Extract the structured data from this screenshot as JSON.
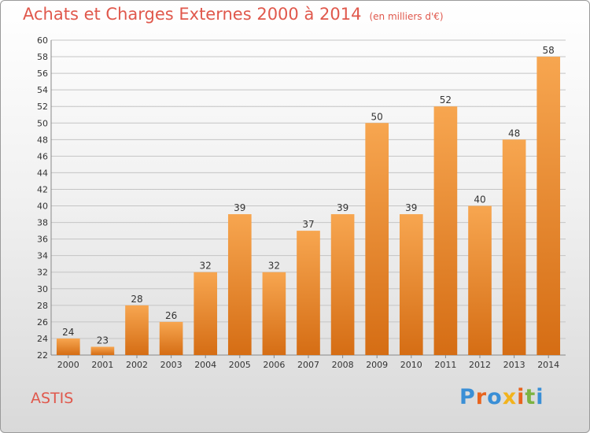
{
  "header": {
    "title": "Achats et Charges Externes 2000 à 2014",
    "unit_note": "(en milliers d'€)"
  },
  "footer": {
    "location": "ASTIS",
    "logo_text": "Proxiti"
  },
  "colors": {
    "title": "#e0584c",
    "bar_top": "#f7a650",
    "bar_bottom": "#d56d14",
    "logo": [
      "#3a8fd6",
      "#e8641e",
      "#3a8fd6",
      "#f2b31c",
      "#e8641e",
      "#7cb342",
      "#3a8fd6"
    ]
  },
  "chart_data": {
    "type": "bar",
    "title": "Achats et Charges Externes 2000 à 2014",
    "subtitle": "(en milliers d'€)",
    "categories": [
      "2000",
      "2001",
      "2002",
      "2003",
      "2004",
      "2005",
      "2006",
      "2007",
      "2008",
      "2009",
      "2010",
      "2011",
      "2012",
      "2013",
      "2014"
    ],
    "values": [
      24,
      23,
      28,
      26,
      32,
      39,
      32,
      37,
      39,
      50,
      39,
      52,
      40,
      48,
      58
    ],
    "ylim": [
      22,
      60
    ],
    "ytick_step": 2,
    "grid": true,
    "xlabel": "",
    "ylabel": ""
  }
}
